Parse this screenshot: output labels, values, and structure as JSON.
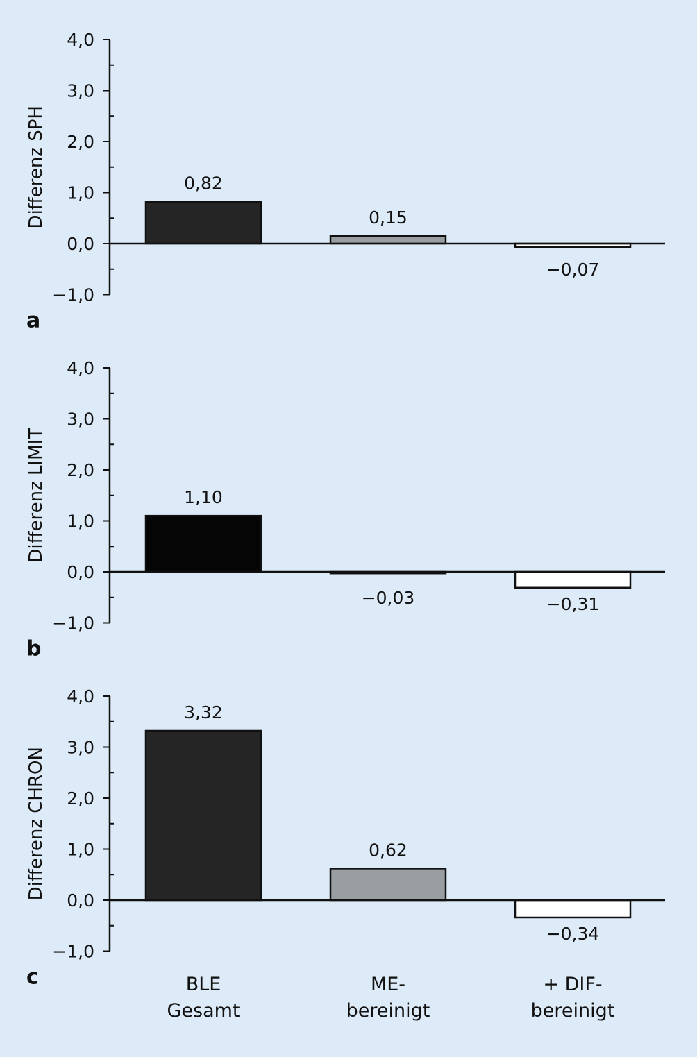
{
  "chart_data": [
    {
      "type": "bar",
      "panel_label": "a",
      "ylabel": "Differenz SPH",
      "ylim": [
        -1.0,
        4.0
      ],
      "yticks": [
        "4,0",
        "3,0",
        "2,0",
        "1,0",
        "0,0",
        "−1,0"
      ],
      "categories": [
        "BLE Gesamt",
        "ME-bereinigt",
        "+ DIF-bereinigt"
      ],
      "values": [
        0.82,
        0.15,
        -0.07
      ],
      "value_labels": [
        "0,82",
        "0,15",
        "−0,07"
      ],
      "colors": [
        "#252525",
        "#999ea3",
        "#ffffff"
      ]
    },
    {
      "type": "bar",
      "panel_label": "b",
      "ylabel": "Differenz LIMIT",
      "ylim": [
        -1.0,
        4.0
      ],
      "yticks": [
        "4,0",
        "3,0",
        "2,0",
        "1,0",
        "0,0",
        "−1,0"
      ],
      "categories": [
        "BLE Gesamt",
        "ME-bereinigt",
        "+ DIF-bereinigt"
      ],
      "values": [
        1.1,
        -0.03,
        -0.31
      ],
      "value_labels": [
        "1,10",
        "−0,03",
        "−0,31"
      ],
      "colors": [
        "#050505",
        "#999ea3",
        "#ffffff"
      ]
    },
    {
      "type": "bar",
      "panel_label": "c",
      "ylabel": "Differenz CHRON",
      "ylim": [
        -1.0,
        4.0
      ],
      "yticks": [
        "4,0",
        "3,0",
        "2,0",
        "1,0",
        "0,0",
        "−1,0"
      ],
      "categories": [
        "BLE Gesamt",
        "ME-bereinigt",
        "+ DIF-bereinigt"
      ],
      "values": [
        3.32,
        0.62,
        -0.34
      ],
      "value_labels": [
        "3,32",
        "0,62",
        "−0,34"
      ],
      "colors": [
        "#252525",
        "#999ea3",
        "#ffffff"
      ]
    }
  ],
  "x_axis_labels": [
    [
      "BLE",
      "Gesamt"
    ],
    [
      "ME-",
      "bereinigt"
    ],
    [
      "+ DIF-",
      "bereinigt"
    ]
  ],
  "style": {
    "background": "#ddeaf7",
    "axis_color": "#111111"
  }
}
